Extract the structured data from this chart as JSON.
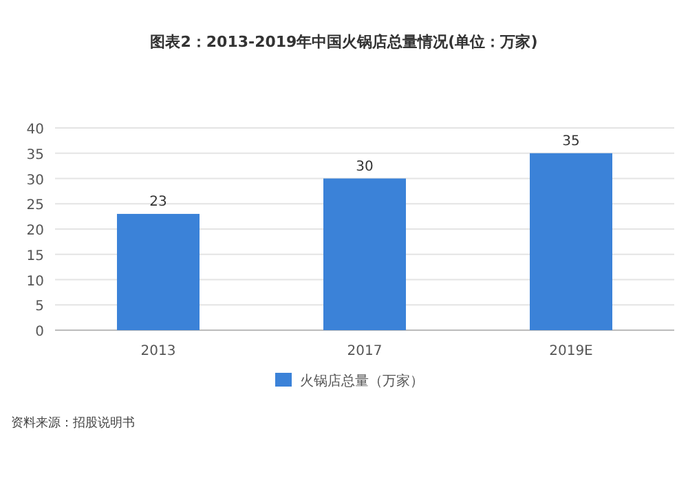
{
  "chart_data": {
    "type": "bar",
    "title": "图表2：2013-2019年中国火锅店总量情况(单位：万家)",
    "categories": [
      "2013",
      "2017",
      "2019E"
    ],
    "series": [
      {
        "name": "火锅店总量（万家）",
        "color": "#3b82d8",
        "values": [
          23,
          30,
          35
        ]
      }
    ],
    "ylim": [
      0,
      40
    ],
    "yticks": [
      0,
      5,
      10,
      15,
      20,
      25,
      30,
      35,
      40
    ],
    "grid": "y",
    "data_labels": true,
    "legend": "bottom",
    "annotations": [
      "资料来源：招股说明书"
    ]
  }
}
